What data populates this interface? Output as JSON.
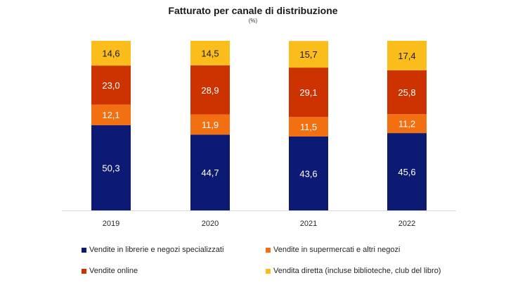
{
  "chart_data": {
    "type": "bar",
    "stacked": true,
    "title": "Fatturato per canale di distribuzione",
    "subtitle": "(%)",
    "categories": [
      "2019",
      "2020",
      "2021",
      "2022"
    ],
    "series": [
      {
        "name": "Vendite in librerie e negozi specializzati",
        "color": "#0d1a73",
        "label_color": "#ffffff",
        "values": [
          50.3,
          44.7,
          43.6,
          45.6
        ],
        "labels": [
          "50,3",
          "44,7",
          "43,6",
          "45,6"
        ]
      },
      {
        "name": "Vendite in supermercati e altri negozi",
        "color": "#f26f12",
        "label_color": "#ffffff",
        "values": [
          12.1,
          11.9,
          11.5,
          11.2
        ],
        "labels": [
          "12,1",
          "11,9",
          "11,5",
          "11,2"
        ]
      },
      {
        "name": "Vendite online",
        "color": "#cc3300",
        "label_color": "#ffffff",
        "values": [
          23.0,
          28.9,
          29.1,
          25.8
        ],
        "labels": [
          "23,0",
          "28,9",
          "29,1",
          "25,8"
        ]
      },
      {
        "name": "Vendita diretta (incluse biblioteche, club del libro)",
        "color": "#fbbd1c",
        "label_color": "#1a1a1a",
        "values": [
          14.6,
          14.5,
          15.7,
          17.4
        ],
        "labels": [
          "14,6",
          "14,5",
          "15,7",
          "17,4"
        ]
      }
    ],
    "ylim": [
      0,
      100
    ],
    "grid": false,
    "legend_position": "bottom"
  }
}
